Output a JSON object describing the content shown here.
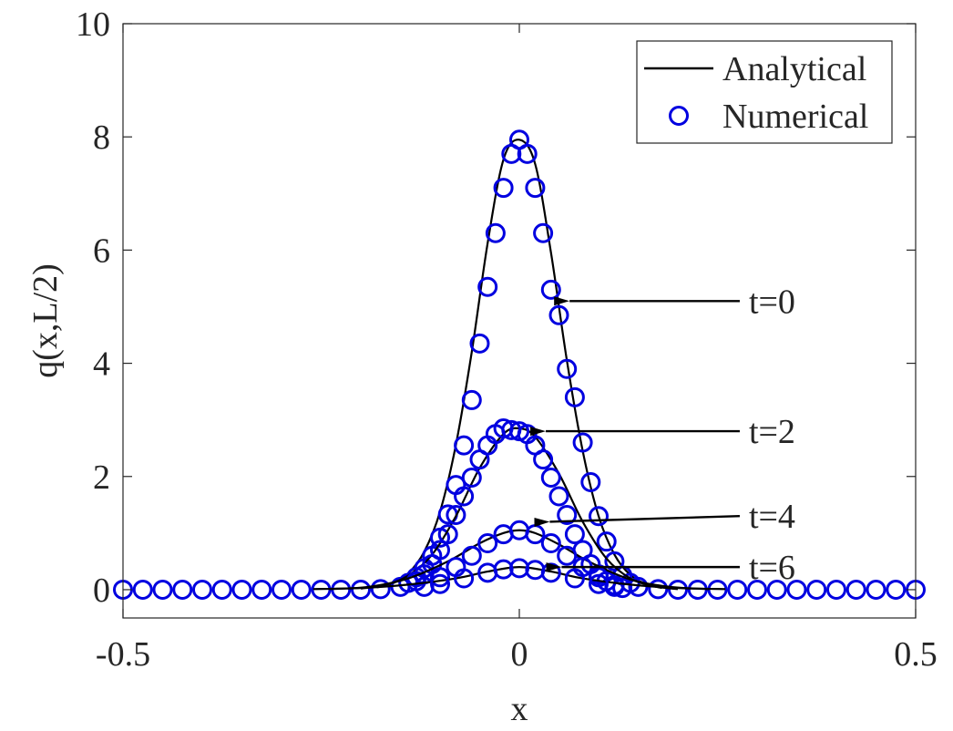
{
  "chart_data": {
    "type": "line",
    "title": "",
    "xlabel": "x",
    "ylabel": "q(x,L/2)",
    "xlim": [
      -0.5,
      0.5
    ],
    "ylim": [
      -0.5,
      10
    ],
    "xticks": [
      -0.5,
      0,
      0.5
    ],
    "xtick_labels": [
      "-0.5",
      "0",
      "0.5"
    ],
    "yticks": [
      0,
      2,
      4,
      6,
      8,
      10
    ],
    "ytick_labels": [
      "0",
      "2",
      "4",
      "6",
      "8",
      "10"
    ],
    "grid": false,
    "legend_position": "top-right",
    "legend": [
      {
        "label": "Analytical",
        "style": "line",
        "color": "#000000"
      },
      {
        "label": "Numerical",
        "style": "circle-marker",
        "color": "#0000e0"
      }
    ],
    "series": [
      {
        "group": "t=0",
        "analytical": {
          "x": [
            -0.18,
            -0.16,
            -0.14,
            -0.12,
            -0.1,
            -0.08,
            -0.06,
            -0.04,
            -0.02,
            0,
            0.02,
            0.04,
            0.06,
            0.08,
            0.1,
            0.12,
            0.14,
            0.16,
            0.18
          ],
          "y": [
            0.04,
            0.11,
            0.29,
            0.67,
            1.38,
            2.56,
            4.2,
            6.12,
            7.6,
            7.95,
            7.52,
            5.95,
            4.05,
            2.45,
            1.3,
            0.62,
            0.26,
            0.1,
            0.03
          ]
        },
        "numerical": {
          "x": [
            -0.5,
            -0.475,
            -0.45,
            -0.425,
            -0.4,
            -0.375,
            -0.35,
            -0.325,
            -0.3,
            -0.275,
            -0.25,
            -0.225,
            -0.2,
            -0.175,
            -0.15,
            -0.14,
            -0.13,
            -0.12,
            -0.11,
            -0.1,
            -0.09,
            -0.08,
            -0.07,
            -0.06,
            -0.05,
            -0.04,
            -0.03,
            -0.02,
            -0.01,
            0,
            0.01,
            0.02,
            0.03,
            0.04,
            0.05,
            0.06,
            0.07,
            0.08,
            0.09,
            0.1,
            0.11,
            0.12,
            0.13,
            0.14,
            0.15,
            0.175,
            0.2,
            0.225,
            0.25,
            0.275,
            0.3,
            0.325,
            0.35,
            0.375,
            0.4,
            0.425,
            0.45,
            0.475,
            0.5
          ],
          "y": [
            0,
            0,
            0,
            0,
            0,
            0,
            0,
            0,
            0,
            0,
            0,
            0,
            0,
            0.01,
            0.05,
            0.12,
            0.22,
            0.38,
            0.6,
            0.92,
            1.33,
            1.85,
            2.55,
            3.35,
            4.35,
            5.35,
            6.3,
            7.1,
            7.7,
            7.95,
            7.7,
            7.1,
            6.3,
            5.3,
            4.85,
            3.9,
            3.4,
            2.6,
            1.9,
            1.3,
            0.85,
            0.5,
            0.25,
            0.12,
            0.05,
            0.01,
            0,
            0,
            0,
            0,
            0,
            0,
            0,
            0,
            0,
            0,
            0,
            0,
            0
          ]
        }
      },
      {
        "group": "t=2",
        "analytical": {
          "x": [
            -0.2,
            -0.17,
            -0.14,
            -0.11,
            -0.08,
            -0.05,
            -0.02,
            0,
            0.02,
            0.05,
            0.08,
            0.11,
            0.14,
            0.17,
            0.2
          ],
          "y": [
            0.02,
            0.08,
            0.25,
            0.62,
            1.3,
            2.15,
            2.75,
            2.85,
            2.7,
            2.05,
            1.2,
            0.55,
            0.2,
            0.06,
            0.01
          ]
        },
        "numerical": {
          "x": [
            -0.13,
            -0.12,
            -0.11,
            -0.1,
            -0.09,
            -0.08,
            -0.07,
            -0.06,
            -0.05,
            -0.04,
            -0.03,
            -0.02,
            -0.01,
            0,
            0.01,
            0.02,
            0.03,
            0.04,
            0.05,
            0.06,
            0.07,
            0.08,
            0.09,
            0.1,
            0.11,
            0.12,
            0.13
          ],
          "y": [
            0.15,
            0.27,
            0.45,
            0.7,
            0.98,
            1.32,
            1.65,
            1.98,
            2.3,
            2.55,
            2.75,
            2.85,
            2.82,
            2.8,
            2.75,
            2.55,
            2.3,
            1.98,
            1.65,
            1.32,
            0.98,
            0.7,
            0.45,
            0.27,
            0.15,
            0.08,
            0.03
          ]
        }
      },
      {
        "group": "t=4",
        "analytical": {
          "x": [
            -0.24,
            -0.19,
            -0.14,
            -0.09,
            -0.05,
            -0.02,
            0,
            0.02,
            0.05,
            0.09,
            0.14,
            0.19,
            0.24
          ],
          "y": [
            0.01,
            0.05,
            0.2,
            0.5,
            0.82,
            1.0,
            1.05,
            1.0,
            0.8,
            0.48,
            0.18,
            0.05,
            0.01
          ]
        },
        "numerical": {
          "x": [
            -0.12,
            -0.1,
            -0.08,
            -0.06,
            -0.04,
            -0.02,
            0,
            0.02,
            0.04,
            0.06,
            0.08,
            0.1,
            0.12
          ],
          "y": [
            0.05,
            0.22,
            0.4,
            0.6,
            0.82,
            0.98,
            1.05,
            0.98,
            0.82,
            0.6,
            0.4,
            0.22,
            0.05
          ]
        }
      },
      {
        "group": "t=6",
        "analytical": {
          "x": [
            -0.26,
            -0.2,
            -0.14,
            -0.08,
            -0.04,
            0,
            0.04,
            0.08,
            0.14,
            0.2,
            0.26
          ],
          "y": [
            0.01,
            0.03,
            0.09,
            0.2,
            0.32,
            0.4,
            0.32,
            0.2,
            0.09,
            0.03,
            0.01
          ]
        },
        "numerical": {
          "x": [
            -0.1,
            -0.07,
            -0.04,
            -0.02,
            0,
            0.02,
            0.04,
            0.07,
            0.1
          ],
          "y": [
            0.1,
            0.2,
            0.3,
            0.36,
            0.38,
            0.35,
            0.3,
            0.2,
            0.1
          ]
        }
      }
    ],
    "annotations": [
      {
        "text": "t=0",
        "text_at": [
          0.285,
          5.1
        ],
        "arrow_to": [
          0.045,
          5.1
        ]
      },
      {
        "text": "t=2",
        "text_at": [
          0.285,
          2.8
        ],
        "arrow_to": [
          0.015,
          2.8
        ]
      },
      {
        "text": "t=4",
        "text_at": [
          0.285,
          1.3
        ],
        "arrow_to": [
          0.02,
          1.2
        ]
      },
      {
        "text": "t=6",
        "text_at": [
          0.285,
          0.4
        ],
        "arrow_to": [
          0.035,
          0.4
        ]
      }
    ]
  },
  "colors": {
    "analytical": "#000000",
    "numerical": "#0000e0",
    "axes": "#262626"
  }
}
